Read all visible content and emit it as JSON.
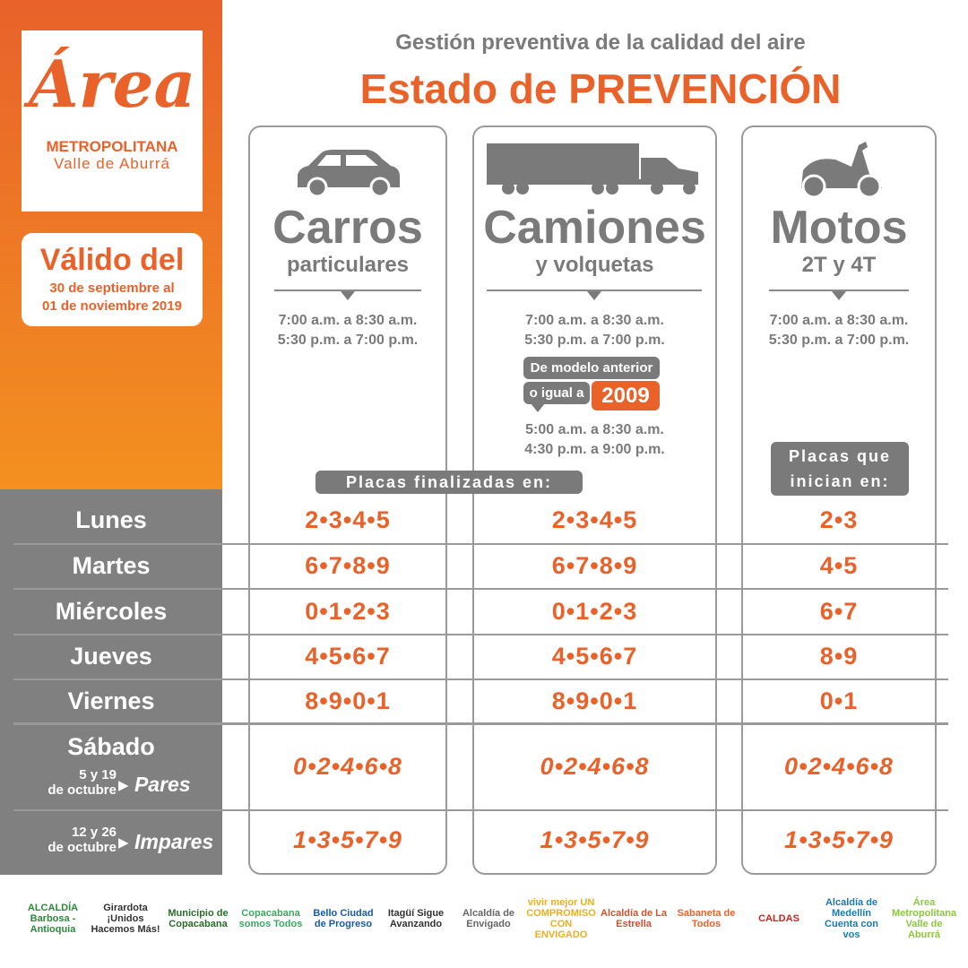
{
  "brand": {
    "script": "Área",
    "line1": "METROPOLITANA",
    "line2": "Valle de Aburrá"
  },
  "validity": {
    "title": "Válido del",
    "from": "30 de septiembre al",
    "to": "01 de noviembre 2019"
  },
  "header": {
    "subtitle": "Gestión preventiva de la calidad del aire",
    "title": "Estado de PREVENCIÓN"
  },
  "colors": {
    "orange": "#e8622a",
    "gray": "#808080"
  },
  "days": [
    "Lunes",
    "Martes",
    "Miércoles",
    "Jueves",
    "Viernes"
  ],
  "saturday": {
    "label": "Sábado",
    "even_dates": "5 y 19",
    "even_month": "de octubre",
    "even_label": "Pares",
    "odd_dates": "12 y 26",
    "odd_month": "de octubre",
    "odd_label": "Impares"
  },
  "columns": [
    {
      "icon": "car-icon",
      "title": "Carros",
      "subtitle": "particulares",
      "times": [
        "7:00 a.m. a 8:30 a.m.",
        "5:30 p.m. a 7:00 p.m."
      ],
      "values": [
        "2•3•4•5",
        "6•7•8•9",
        "0•1•2•3",
        "4•5•6•7",
        "8•9•0•1"
      ],
      "sat_even": "0•2•4•6•8",
      "sat_odd": "1•3•5•7•9"
    },
    {
      "icon": "truck-icon",
      "title": "Camiones",
      "subtitle": "y volquetas",
      "times": [
        "7:00 a.m. a 8:30 a.m.",
        "5:30 p.m. a 7:00 p.m."
      ],
      "model_note_1": "De modelo anterior",
      "model_note_2": "o igual a",
      "model_year": "2009",
      "times_old": [
        "5:00 a.m. a 8:30 a.m.",
        "4:30 p.m. a 9:00 p.m."
      ],
      "values": [
        "2•3•4•5",
        "6•7•8•9",
        "0•1•2•3",
        "4•5•6•7",
        "8•9•0•1"
      ],
      "sat_even": "0•2•4•6•8",
      "sat_odd": "1•3•5•7•9"
    },
    {
      "icon": "motorcycle-icon",
      "title": "Motos",
      "subtitle": "2T y 4T",
      "times": [
        "7:00 a.m. a 8:30 a.m.",
        "5:30 p.m. a 7:00 p.m."
      ],
      "values": [
        "2•3",
        "4•5",
        "6•7",
        "8•9",
        "0•1"
      ],
      "sat_even": "0•2•4•6•8",
      "sat_odd": "1•3•5•7•9"
    }
  ],
  "plates_end_label": "Placas finalizadas en:",
  "plates_start_label_1": "Placas que",
  "plates_start_label_2": "inician en:",
  "sponsors": [
    "ALCALDÍA Barbosa - Antioquia",
    "Girardota ¡Unidos Hacemos Más!",
    "Municipio de Copacabana",
    "Copacabana somos Todos",
    "Bello Ciudad de Progreso",
    "Itagüí Sigue Avanzando",
    "Alcaldía de Envigado",
    "vivir mejor UN COMPROMISO CON ENVIGADO",
    "Alcaldía de La Estrella",
    "Sabaneta de Todos",
    "CALDAS",
    "Alcaldía de Medellín Cuenta con vos",
    "Área Metropolitana Valle de Aburrá"
  ]
}
